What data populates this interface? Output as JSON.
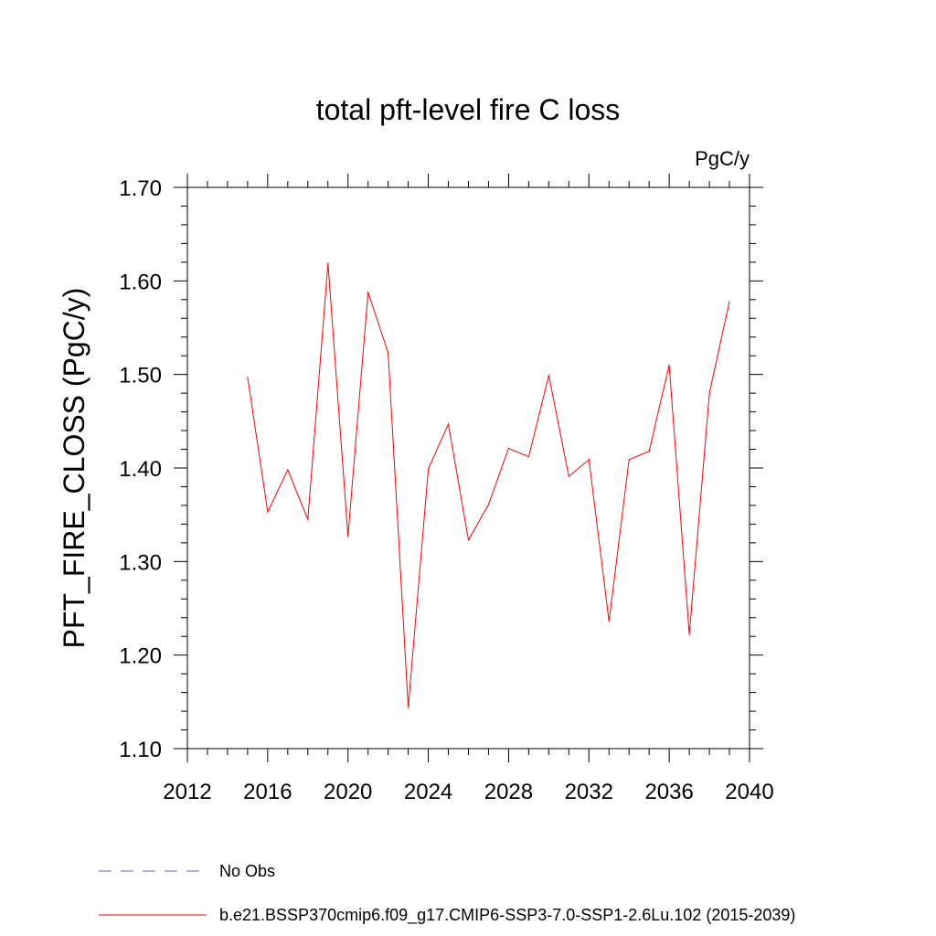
{
  "chart_data": {
    "type": "line",
    "title": "total pft-level fire C loss",
    "units": "PgC/y",
    "ylabel": "PFT_FIRE_CLOSS  (PgC/y)",
    "xlabel": "",
    "xlim": [
      2012,
      2040
    ],
    "ylim": [
      1.1,
      1.7
    ],
    "xticks": [
      2012,
      2016,
      2020,
      2024,
      2028,
      2032,
      2036,
      2040
    ],
    "xtick_labels": [
      "2012",
      "2016",
      "2020",
      "2024",
      "2028",
      "2032",
      "2036",
      "2040"
    ],
    "xminor_step": 1,
    "yticks": [
      1.1,
      1.2,
      1.3,
      1.4,
      1.5,
      1.6,
      1.7
    ],
    "ytick_labels": [
      "1.10",
      "1.20",
      "1.30",
      "1.40",
      "1.50",
      "1.60",
      "1.70"
    ],
    "yminor_step": 0.02,
    "series": [
      {
        "name": "b.e21.BSSP370cmip6.f09_g17.CMIP6-SSP3-7.0-SSP1-2.6Lu.102 (2015-2039)",
        "color": "#ff0000",
        "x": [
          2015,
          2016,
          2017,
          2018,
          2019,
          2020,
          2021,
          2022,
          2023,
          2024,
          2025,
          2026,
          2027,
          2028,
          2029,
          2030,
          2031,
          2032,
          2033,
          2034,
          2035,
          2036,
          2037,
          2038,
          2039
        ],
        "y": [
          1.497,
          1.353,
          1.398,
          1.345,
          1.619,
          1.327,
          1.588,
          1.523,
          1.144,
          1.399,
          1.447,
          1.323,
          1.361,
          1.421,
          1.412,
          1.499,
          1.391,
          1.409,
          1.236,
          1.409,
          1.418,
          1.51,
          1.222,
          1.48,
          1.578
        ]
      }
    ],
    "legend": [
      {
        "label": "No Obs",
        "color": "#6a5acd",
        "style": "dashed"
      },
      {
        "label": "b.e21.BSSP370cmip6.f09_g17.CMIP6-SSP3-7.0-SSP1-2.6Lu.102 (2015-2039)",
        "color": "#ff0000",
        "style": "solid"
      }
    ],
    "legend_position": "bottom-left",
    "grid": false
  }
}
